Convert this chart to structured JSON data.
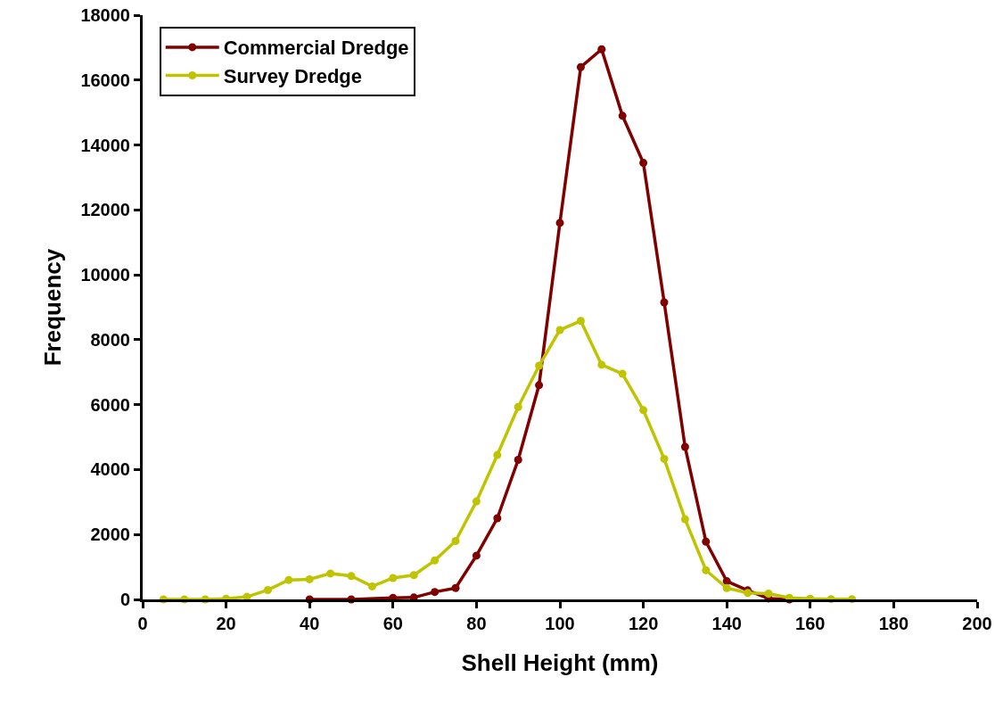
{
  "chart_data": {
    "type": "line",
    "xlabel": "Shell Height (mm)",
    "ylabel": "Frequency",
    "xlim": [
      0,
      200
    ],
    "xticks": [
      0,
      20,
      40,
      60,
      80,
      100,
      120,
      140,
      160,
      180,
      200
    ],
    "ylim": [
      0,
      18000
    ],
    "yticks": [
      0,
      2000,
      4000,
      6000,
      8000,
      10000,
      12000,
      14000,
      16000,
      18000
    ],
    "grid": false,
    "legend": "top left",
    "marker": "circle",
    "series": [
      {
        "name": "Commercial Dredge",
        "color": "#800000",
        "x": [
          40,
          50,
          60,
          65,
          70,
          75,
          80,
          85,
          90,
          95,
          100,
          105,
          110,
          115,
          120,
          125,
          130,
          135,
          140,
          145,
          150,
          155
        ],
        "values": [
          0,
          0,
          50,
          60,
          230,
          350,
          1350,
          2500,
          4300,
          6600,
          11600,
          16400,
          16950,
          14900,
          13450,
          9150,
          4700,
          1780,
          560,
          280,
          30,
          0
        ]
      },
      {
        "name": "Survey Dredge",
        "color": "#bfc400",
        "x": [
          5,
          10,
          15,
          20,
          25,
          30,
          35,
          40,
          45,
          50,
          55,
          60,
          65,
          70,
          75,
          80,
          85,
          90,
          95,
          100,
          105,
          110,
          115,
          120,
          125,
          130,
          135,
          140,
          145,
          150,
          155,
          160,
          165,
          170
        ],
        "values": [
          0,
          0,
          0,
          20,
          80,
          290,
          600,
          620,
          800,
          720,
          400,
          660,
          750,
          1200,
          1800,
          3020,
          4450,
          5930,
          7200,
          8300,
          8580,
          7230,
          6950,
          5830,
          4330,
          2470,
          900,
          350,
          200,
          180,
          50,
          20,
          10,
          10
        ]
      }
    ]
  }
}
